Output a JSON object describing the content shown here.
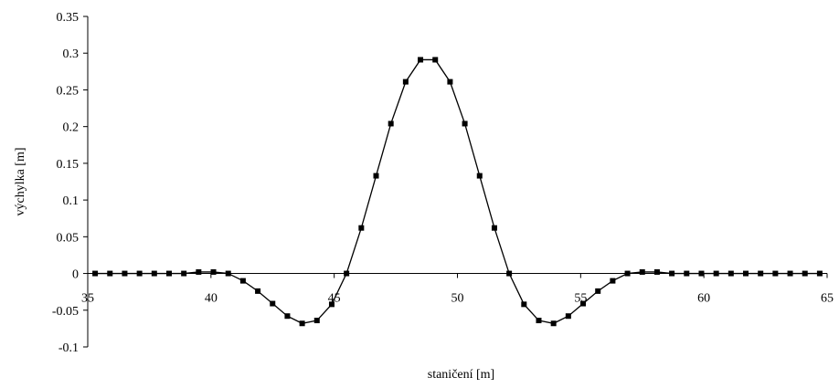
{
  "chart_data": {
    "type": "line",
    "title": "",
    "xlabel": "staničení [m]",
    "ylabel": "výchylka [m]",
    "xlim": [
      35,
      65
    ],
    "ylim": [
      -0.1,
      0.35
    ],
    "xticks": [
      {
        "value": 35,
        "label": "35"
      },
      {
        "value": 40,
        "label": "40"
      },
      {
        "value": 45,
        "label": "45"
      },
      {
        "value": 50,
        "label": "50"
      },
      {
        "value": 55,
        "label": "55"
      },
      {
        "value": 60,
        "label": "60"
      },
      {
        "value": 65,
        "label": "65"
      }
    ],
    "yticks": [
      {
        "value": -0.1,
        "label": "-0.1"
      },
      {
        "value": -0.05,
        "label": "-0.05"
      },
      {
        "value": 0,
        "label": "0"
      },
      {
        "value": 0.05,
        "label": "0.05"
      },
      {
        "value": 0.1,
        "label": "0.1"
      },
      {
        "value": 0.15,
        "label": "0.15"
      },
      {
        "value": 0.2,
        "label": "0.2"
      },
      {
        "value": 0.25,
        "label": "0.25"
      },
      {
        "value": 0.3,
        "label": "0.3"
      },
      {
        "value": 0.35,
        "label": "0.35"
      }
    ],
    "grid": false,
    "legend": "none",
    "colors": {
      "line": "#000000",
      "marker": "#000000",
      "axis": "#000000"
    },
    "series": [
      {
        "x": [
          35.3,
          35.9,
          36.5,
          37.1,
          37.7,
          38.3,
          38.9,
          39.5,
          40.1,
          40.7,
          41.3,
          41.9,
          42.5,
          43.1,
          43.7,
          44.3,
          44.9,
          45.5,
          46.1,
          46.7,
          47.3,
          47.9,
          48.5,
          49.1,
          49.7,
          50.3,
          50.9,
          51.5,
          52.1,
          52.7,
          53.3,
          53.9,
          54.5,
          55.1,
          55.7,
          56.3,
          56.9,
          57.5,
          58.1,
          58.7,
          59.3,
          59.9,
          60.5,
          61.1,
          61.7,
          62.3,
          62.9,
          63.5,
          64.1,
          64.7
        ],
        "y": [
          0,
          0,
          0,
          0,
          0,
          0,
          0,
          0.002,
          0.002,
          0,
          -0.01,
          -0.024,
          -0.041,
          -0.058,
          -0.068,
          -0.064,
          -0.042,
          0,
          0.062,
          0.133,
          0.204,
          0.261,
          0.291,
          0.291,
          0.261,
          0.204,
          0.133,
          0.062,
          0,
          -0.042,
          -0.064,
          -0.068,
          -0.058,
          -0.041,
          -0.024,
          -0.01,
          0,
          0.002,
          0.002,
          0,
          0,
          0,
          0,
          0,
          0,
          0,
          0,
          0,
          0,
          0
        ]
      }
    ]
  }
}
